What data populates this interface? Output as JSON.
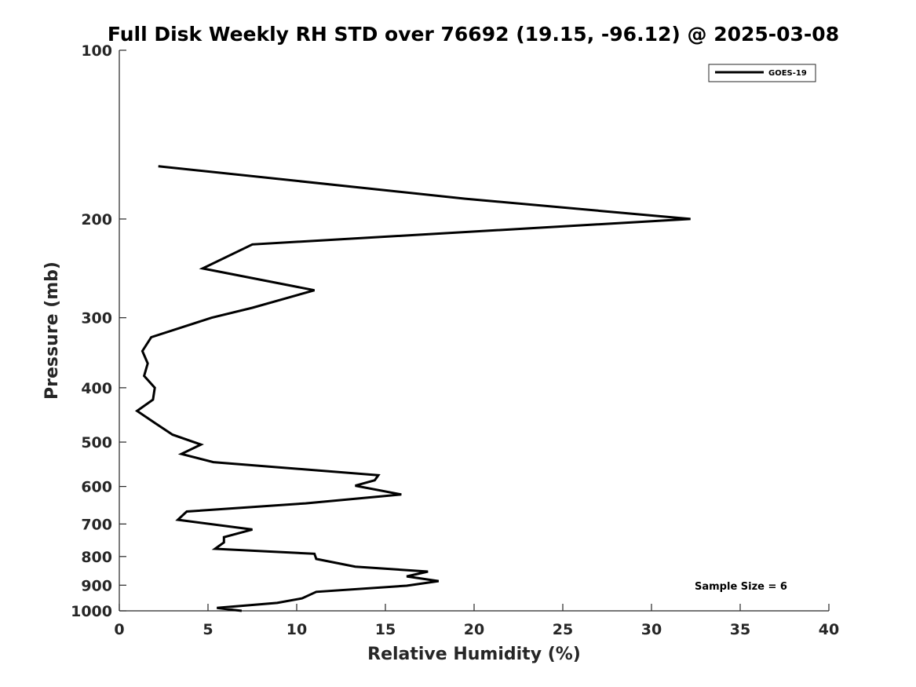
{
  "chart_data": {
    "type": "line",
    "title": "Full Disk Weekly RH STD over 76692 (19.15, -96.12) @ 2025-03-08",
    "xlabel": "Relative Humidity (%)",
    "ylabel": "Pressure (mb)",
    "xlim": [
      0,
      40
    ],
    "ylim": [
      100,
      1000
    ],
    "y_scale": "log",
    "y_reversed": true,
    "grid": false,
    "x_ticks": [
      0,
      5,
      10,
      15,
      20,
      25,
      30,
      35,
      40
    ],
    "x_tick_labels": [
      "0",
      "5",
      "10",
      "15",
      "20",
      "25",
      "30",
      "35",
      "40"
    ],
    "y_ticks": [
      100,
      200,
      300,
      400,
      500,
      600,
      700,
      800,
      900,
      1000
    ],
    "y_tick_labels": [
      "100",
      "200",
      "300",
      "400",
      "500",
      "600",
      "700",
      "800",
      "900",
      "1000"
    ],
    "legend": {
      "placement": "top-right",
      "entries": [
        "GOES-19"
      ]
    },
    "annotations": [
      {
        "text": "Sample Size = 6",
        "placement": "bottom-right"
      }
    ],
    "series": [
      {
        "name": "GOES-19",
        "color": "#000000",
        "points": [
          [
            2.2,
            161
          ],
          [
            19.5,
            184
          ],
          [
            32.2,
            200
          ],
          [
            7.5,
            222
          ],
          [
            4.7,
            245
          ],
          [
            11.0,
            268
          ],
          [
            7.5,
            288
          ],
          [
            5.2,
            300
          ],
          [
            1.8,
            325
          ],
          [
            1.3,
            344
          ],
          [
            1.6,
            362
          ],
          [
            1.4,
            381
          ],
          [
            2.0,
            400
          ],
          [
            1.9,
            420
          ],
          [
            1.0,
            440
          ],
          [
            2.0,
            462
          ],
          [
            3.0,
            485
          ],
          [
            4.6,
            505
          ],
          [
            3.5,
            525
          ],
          [
            5.3,
            543
          ],
          [
            14.6,
            573
          ],
          [
            14.4,
            585
          ],
          [
            13.3,
            598
          ],
          [
            15.9,
            620
          ],
          [
            10.5,
            643
          ],
          [
            3.8,
            665
          ],
          [
            3.3,
            688
          ],
          [
            7.5,
            716
          ],
          [
            5.9,
            739
          ],
          [
            5.9,
            755
          ],
          [
            5.4,
            775
          ],
          [
            11.0,
            791
          ],
          [
            11.1,
            808
          ],
          [
            13.3,
            834
          ],
          [
            17.4,
            851
          ],
          [
            16.2,
            868
          ],
          [
            18.0,
            885
          ],
          [
            16.2,
            902
          ],
          [
            11.1,
            925
          ],
          [
            10.3,
            950
          ],
          [
            8.9,
            968
          ],
          [
            5.5,
            988
          ],
          [
            6.9,
            1000
          ]
        ]
      }
    ]
  }
}
